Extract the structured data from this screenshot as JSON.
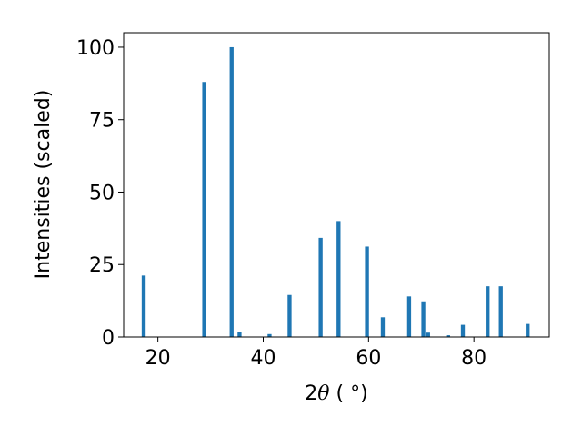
{
  "chart_data": {
    "type": "bar",
    "xlabel_prefix": "2",
    "xlabel_symbol": "θ",
    "xlabel_suffix": " ( °)",
    "ylabel": "Intensities (scaled)",
    "xlim": [
      13.5,
      94.3
    ],
    "ylim": [
      0,
      105
    ],
    "xticks": [
      20,
      40,
      60,
      80
    ],
    "yticks": [
      0,
      25,
      50,
      75,
      100
    ],
    "bar_color": "#1f77b4",
    "bar_width": 0.75,
    "grid": false,
    "x": [
      17.3,
      28.8,
      34.0,
      35.5,
      41.2,
      45.0,
      50.9,
      54.3,
      59.7,
      62.7,
      67.7,
      70.4,
      71.3,
      75.1,
      77.9,
      82.6,
      85.1,
      90.2
    ],
    "values": [
      21.2,
      88.0,
      100.0,
      1.8,
      1.0,
      14.5,
      34.2,
      40.0,
      31.2,
      6.8,
      14.0,
      12.3,
      1.5,
      0.6,
      4.2,
      17.5,
      17.5,
      4.5
    ]
  }
}
